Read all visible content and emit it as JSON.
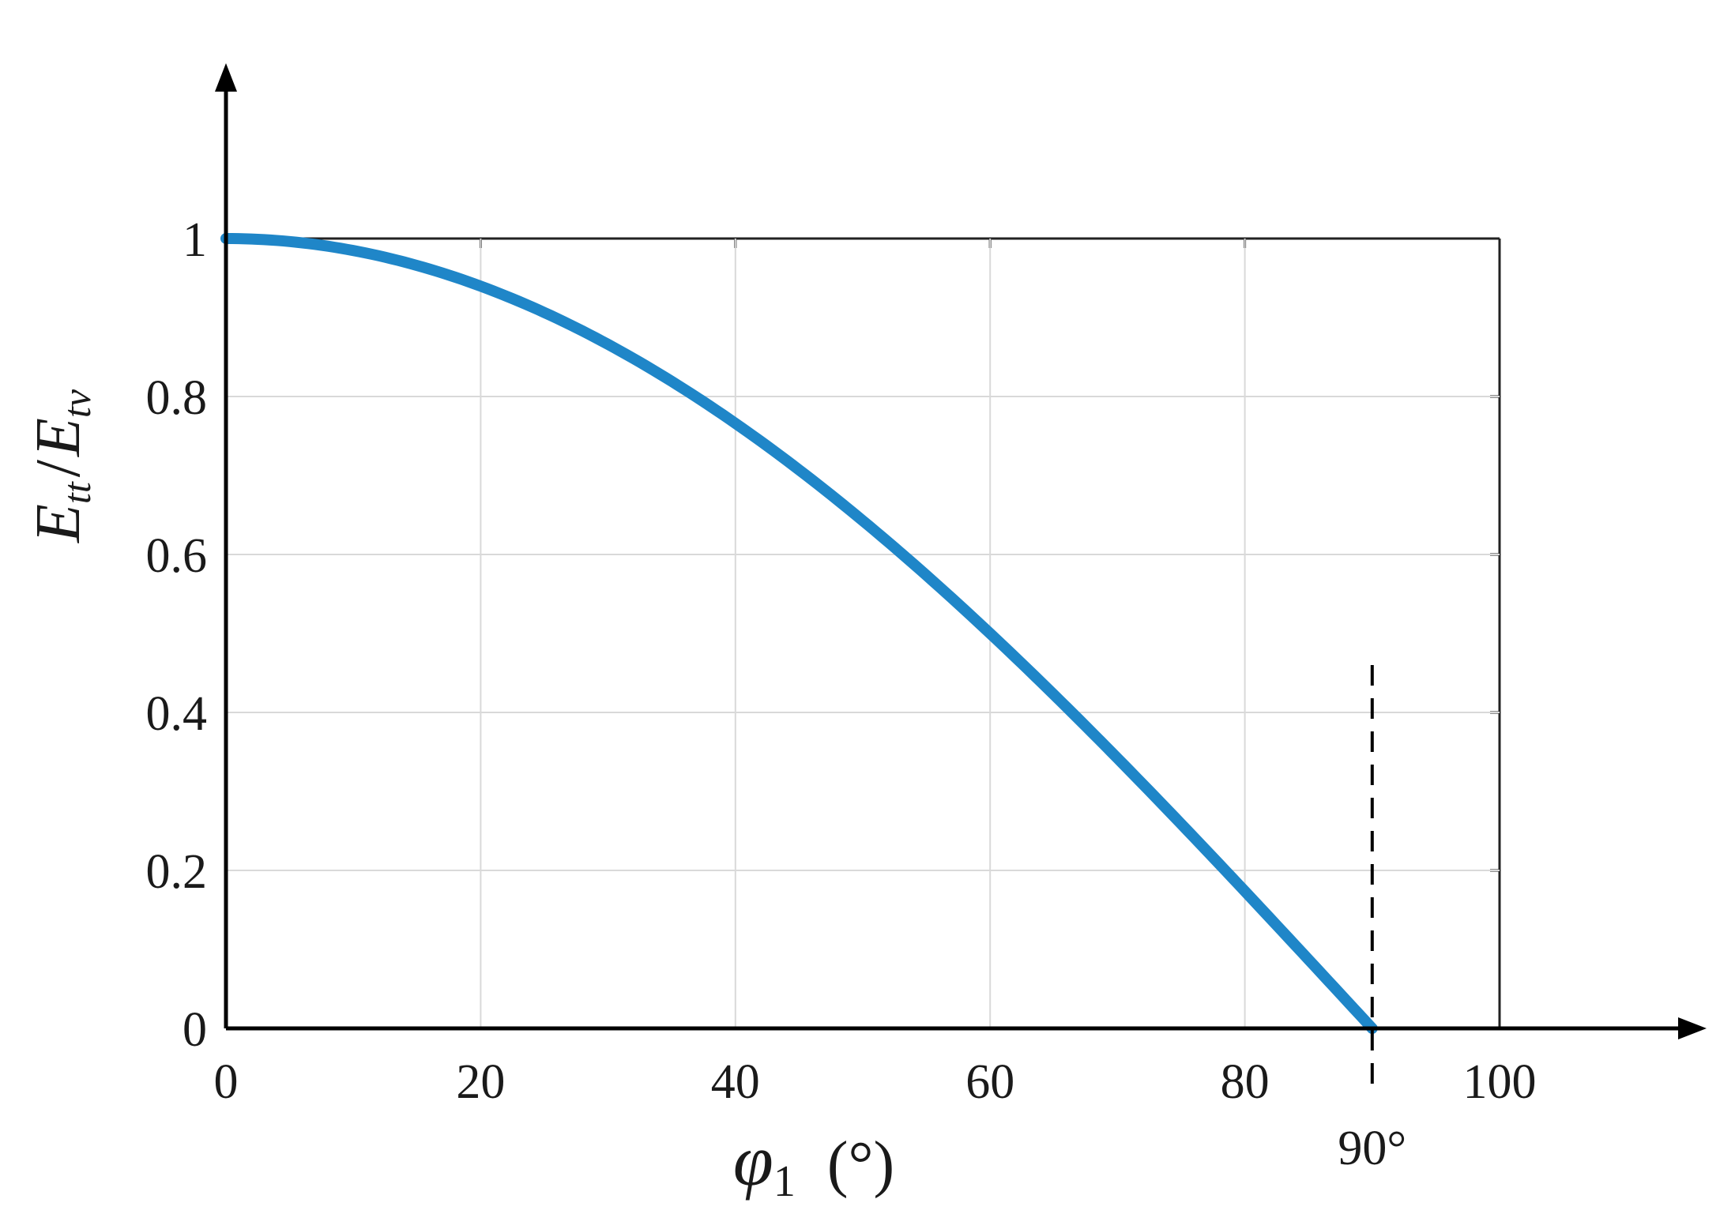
{
  "chart_data": {
    "type": "line",
    "title": "",
    "xlabel": {
      "symbol": "φ",
      "subscript": "1",
      "unit": "(°)"
    },
    "ylabel": {
      "numerator": "E",
      "numerator_sub": "tt",
      "slash": "/",
      "denominator": "E",
      "denominator_sub": "tv"
    },
    "xlim": [
      0,
      100
    ],
    "ylim": [
      0,
      1
    ],
    "xticks": [
      "0",
      "20",
      "40",
      "60",
      "80",
      "100"
    ],
    "yticks": [
      "0",
      "0.2",
      "0.4",
      "0.6",
      "0.8",
      "1"
    ],
    "grid": true,
    "axis_arrows": true,
    "series": [
      {
        "color": "#1f86c8",
        "function": "cos(x in degrees)",
        "x": [
          0,
          5,
          10,
          15,
          20,
          25,
          30,
          35,
          40,
          45,
          50,
          55,
          60,
          65,
          70,
          75,
          80,
          82,
          84,
          86,
          88,
          89,
          90
        ],
        "y": [
          1.0,
          0.996,
          0.985,
          0.966,
          0.94,
          0.906,
          0.866,
          0.819,
          0.766,
          0.707,
          0.643,
          0.574,
          0.5,
          0.423,
          0.342,
          0.259,
          0.174,
          0.139,
          0.105,
          0.07,
          0.035,
          0.017,
          0.0
        ]
      }
    ],
    "annotations": [
      {
        "type": "vertical-dashed-line",
        "x": 90,
        "y_top": 0.46,
        "label": "90°",
        "color": "#000000"
      }
    ]
  }
}
